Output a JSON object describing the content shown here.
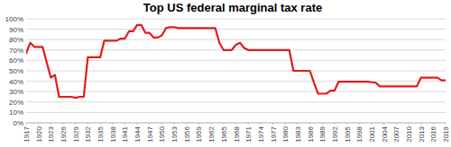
{
  "chart_data": {
    "type": "line",
    "title": "Top US federal marginal tax rate",
    "x": [
      1917,
      1918,
      1919,
      1920,
      1921,
      1922,
      1923,
      1924,
      1925,
      1926,
      1927,
      1928,
      1929,
      1930,
      1931,
      1932,
      1933,
      1934,
      1935,
      1936,
      1937,
      1938,
      1939,
      1940,
      1941,
      1942,
      1943,
      1944,
      1945,
      1946,
      1947,
      1948,
      1949,
      1950,
      1951,
      1952,
      1953,
      1954,
      1955,
      1956,
      1957,
      1958,
      1959,
      1960,
      1961,
      1962,
      1963,
      1964,
      1965,
      1966,
      1967,
      1968,
      1969,
      1970,
      1971,
      1972,
      1973,
      1974,
      1975,
      1976,
      1977,
      1978,
      1979,
      1980,
      1981,
      1982,
      1983,
      1984,
      1985,
      1986,
      1987,
      1988,
      1989,
      1990,
      1991,
      1992,
      1993,
      1994,
      1995,
      1996,
      1997,
      1998,
      1999,
      2000,
      2001,
      2002,
      2003,
      2004,
      2005,
      2006,
      2007,
      2008,
      2009,
      2010,
      2011,
      2012,
      2013,
      2014,
      2015,
      2016,
      2017,
      2018,
      2019
    ],
    "values": [
      67,
      77,
      73,
      73,
      73,
      58,
      43.5,
      46,
      25,
      25,
      25,
      25,
      24,
      25,
      25,
      63,
      63,
      63,
      63,
      79,
      79,
      79,
      79,
      81,
      81,
      88,
      88,
      94,
      94,
      86.5,
      86.5,
      82,
      82,
      84,
      91,
      92,
      92,
      91,
      91,
      91,
      91,
      91,
      91,
      91,
      91,
      91,
      91,
      77,
      70,
      70,
      70,
      75,
      77,
      72,
      70,
      70,
      70,
      70,
      70,
      70,
      70,
      70,
      70,
      70,
      70,
      50,
      50,
      50,
      50,
      50,
      38.5,
      28,
      28,
      28,
      31,
      31,
      39.6,
      39.6,
      39.6,
      39.6,
      39.6,
      39.6,
      39.6,
      39.6,
      39,
      38.6,
      35,
      35,
      35,
      35,
      35,
      35,
      35,
      35,
      35,
      35,
      43.4,
      43.4,
      43.4,
      43.4,
      43.4,
      40.8,
      40.8
    ],
    "color": "#e31a1c",
    "xlim": [
      1917,
      2019
    ],
    "xticks": [
      1917,
      1920,
      1923,
      1926,
      1929,
      1932,
      1935,
      1938,
      1941,
      1944,
      1947,
      1950,
      1953,
      1956,
      1959,
      1962,
      1965,
      1968,
      1971,
      1974,
      1977,
      1980,
      1983,
      1986,
      1989,
      1992,
      1995,
      1998,
      2001,
      2004,
      2007,
      2010,
      2013,
      2016,
      2019
    ],
    "ylim": [
      0,
      100
    ],
    "yticks": [
      {
        "value": 0,
        "label": "0%"
      },
      {
        "value": 10,
        "label": "10%"
      },
      {
        "value": 20,
        "label": "20%"
      },
      {
        "value": 30,
        "label": "30%"
      },
      {
        "value": 40,
        "label": "40%"
      },
      {
        "value": 50,
        "label": "50%"
      },
      {
        "value": 60,
        "label": "60%"
      },
      {
        "value": 70,
        "label": "70%"
      },
      {
        "value": 80,
        "label": "80%"
      },
      {
        "value": 90,
        "label": "90%"
      },
      {
        "value": 100,
        "label": "100%"
      }
    ],
    "grid": true
  }
}
